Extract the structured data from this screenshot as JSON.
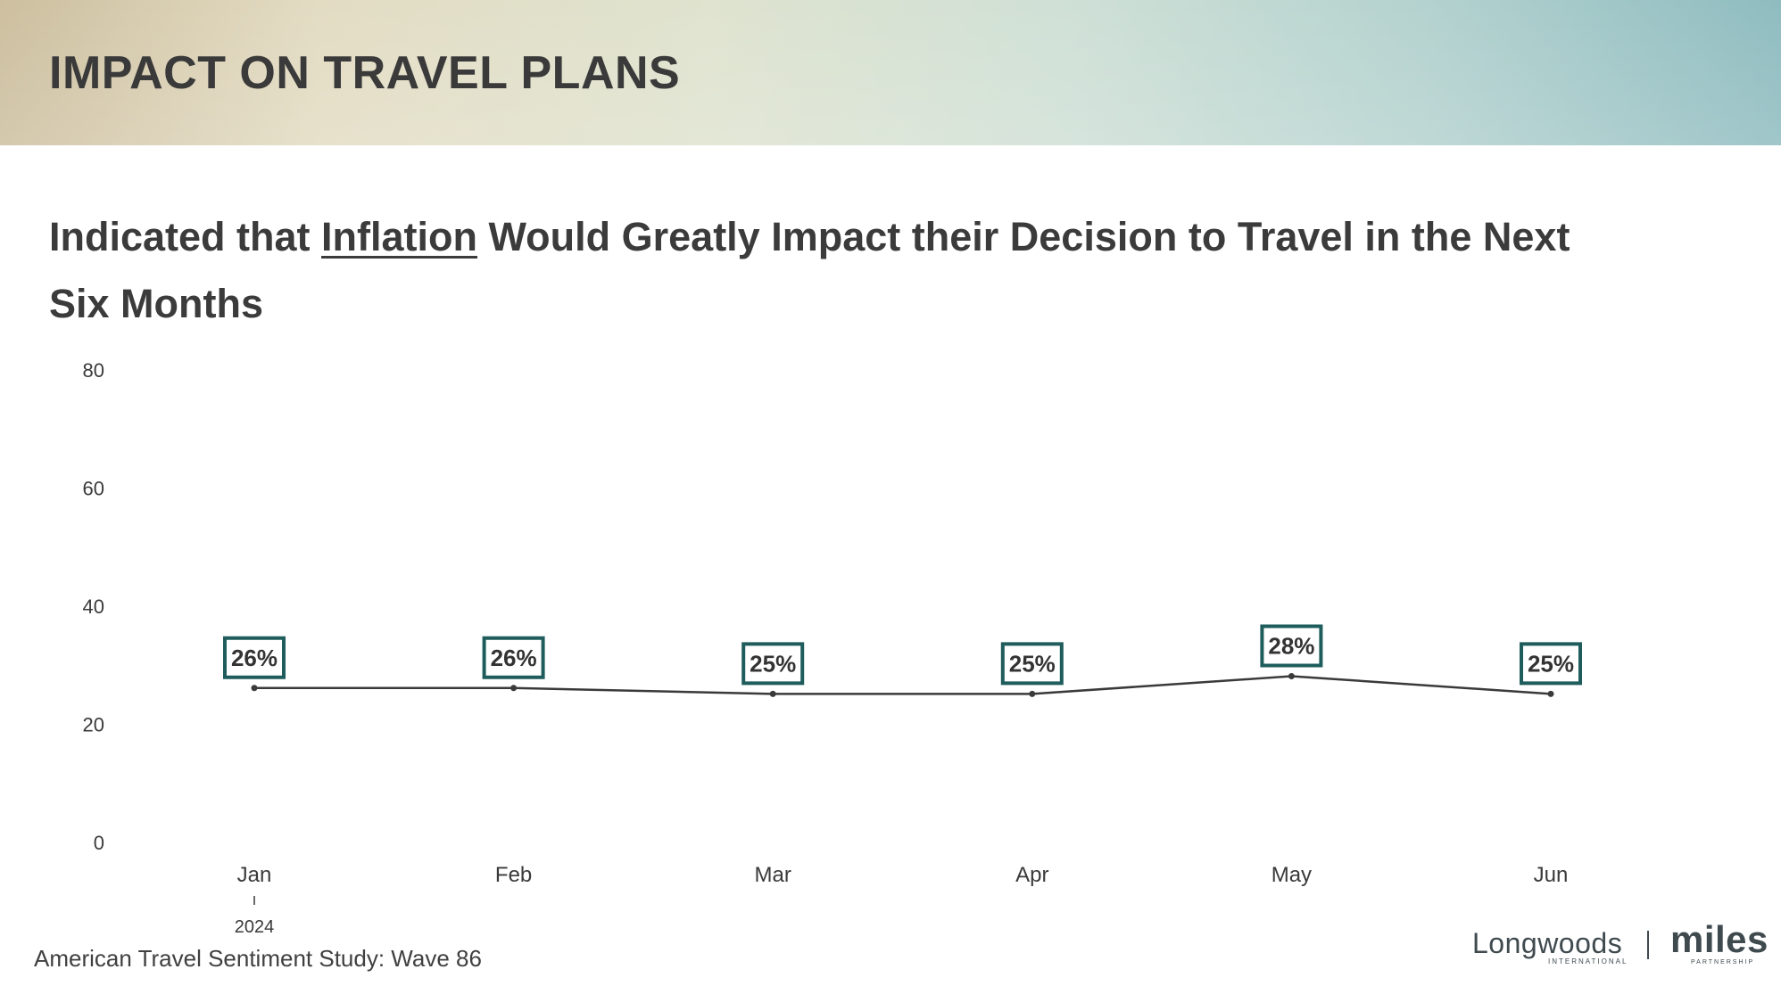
{
  "header": {
    "title": "IMPACT ON TRAVEL PLANS"
  },
  "subtitle": {
    "before": "Indicated that ",
    "emphasis": "Inflation",
    "after": " Would Greatly Impact their Decision to Travel in the Next Six Months"
  },
  "footer": {
    "source": "American Travel Sentiment Study: Wave 86"
  },
  "logos": {
    "longwoods": "Longwoods",
    "longwoods_sub": "INTERNATIONAL",
    "miles": "miles",
    "miles_sub": "PARTNERSHIP"
  },
  "colors": {
    "line": "#3a3a3a",
    "label_border": "#1f5c5c",
    "label_text": "#333333",
    "axis_text": "#3a3a3a"
  },
  "chart_data": {
    "type": "line",
    "categories": [
      "Jan",
      "Feb",
      "Mar",
      "Apr",
      "May",
      "Jun"
    ],
    "category_group": "2024",
    "series": [
      {
        "values": [
          26,
          26,
          25,
          25,
          28,
          25
        ]
      }
    ],
    "data_labels": [
      "26%",
      "26%",
      "25%",
      "25%",
      "28%",
      "25%"
    ],
    "yticks": [
      0,
      20,
      40,
      60,
      80
    ],
    "ylim": [
      0,
      80
    ],
    "grid": false,
    "legend": false
  }
}
